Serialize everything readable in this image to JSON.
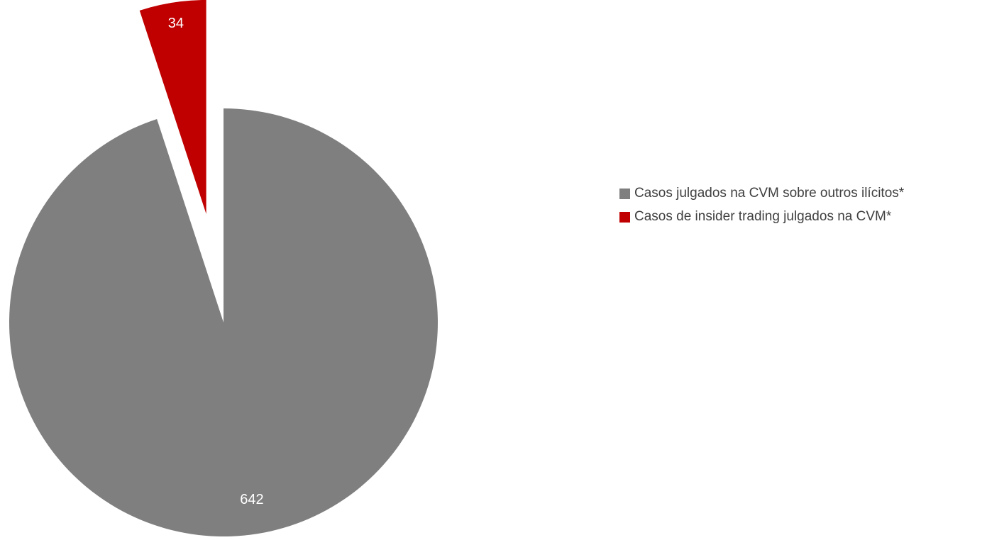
{
  "chart_data": {
    "type": "pie",
    "title": "",
    "slices": [
      {
        "label": "Casos julgados na CVM sobre outros ilícitos*",
        "value": 642,
        "color": "#7f7f7f",
        "exploded": false
      },
      {
        "label": "Casos de insider trading julgados na CVM*",
        "value": 34,
        "color": "#c00000",
        "exploded": true
      }
    ],
    "data_label_color": "#ffffff",
    "legend_position": "right",
    "legend": [
      {
        "label": "Casos julgados na CVM sobre outros ilícitos*",
        "color": "#7f7f7f"
      },
      {
        "label": "Casos de insider trading julgados na CVM*",
        "color": "#c00000"
      }
    ]
  }
}
